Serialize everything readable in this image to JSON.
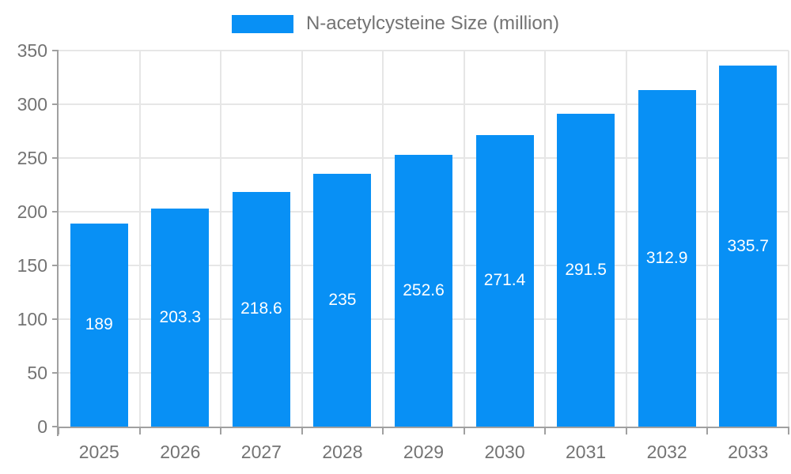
{
  "legend": {
    "label": "N-acetylcysteine Size (million)",
    "swatch_color": "#0890f5"
  },
  "chart_data": {
    "type": "bar",
    "title": "",
    "categories": [
      "2025",
      "2026",
      "2027",
      "2028",
      "2029",
      "2030",
      "2031",
      "2032",
      "2033"
    ],
    "values": [
      189,
      203.3,
      218.6,
      235,
      252.6,
      271.4,
      291.5,
      312.9,
      335.7
    ],
    "series": [
      {
        "name": "N-acetylcysteine Size (million)",
        "values": [
          189,
          203.3,
          218.6,
          235,
          252.6,
          271.4,
          291.5,
          312.9,
          335.7
        ]
      }
    ],
    "xlabel": "",
    "ylabel": "",
    "ylim": [
      0,
      350
    ],
    "yticks": [
      0,
      50,
      100,
      150,
      200,
      250,
      300,
      350
    ],
    "grid": true,
    "legend_position": "top-center",
    "bar_color": "#0890f5",
    "value_label_color": "#ffffff",
    "axis_color": "#a0a0a0",
    "grid_color": "#e6e6e6",
    "tick_label_color": "#737373"
  }
}
